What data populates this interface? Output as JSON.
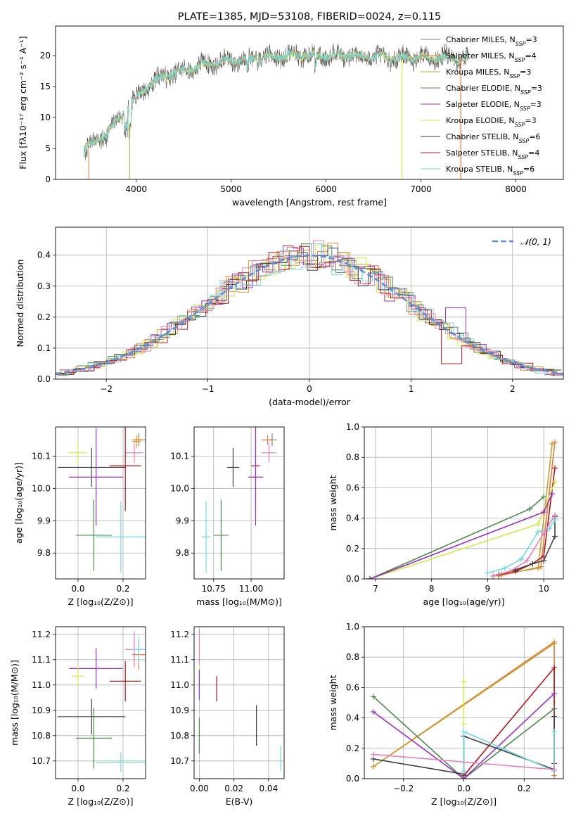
{
  "title": "PLATE=1385, MJD=53108, FIBERID=0024, z=0.115",
  "colors": {
    "chabrier_miles": "#808080",
    "salpeter_miles": "#e07b39",
    "kroupa_miles": "#c8a030",
    "chabrier_elodie": "#4c8a4c",
    "salpeter_elodie": "#9b30c0",
    "kroupa_elodie": "#d2e64a",
    "chabrier_stelib": "#404040",
    "salpeter_stelib": "#b01818",
    "kroupa_stelib": "#6fd8e0",
    "pink": "#e87fbf",
    "normal_curve": "#5b8fd9"
  },
  "chart_data": [
    {
      "id": "spectrum",
      "type": "line",
      "title": "PLATE=1385, MJD=53108, FIBERID=0024, z=0.115",
      "xlabel": "wavelength [Angstrom, rest frame]",
      "ylabel": "Flux [fλ10⁻¹⁷ erg cm⁻² s⁻¹ A⁻¹]",
      "xlim": [
        3150,
        8500
      ],
      "ylim": [
        0,
        24.8
      ],
      "xticks": [
        4000,
        5000,
        6000,
        7000,
        8000
      ],
      "yticks": [
        0,
        5,
        10,
        15,
        20
      ],
      "legend_position": "top-right",
      "x_range": [
        3450,
        7500
      ],
      "envelope": {
        "x": [
          3450,
          3550,
          3650,
          3750,
          3850,
          3950,
          4050,
          4150,
          4300,
          4500,
          4700,
          4900,
          5100,
          5300,
          5500,
          5700,
          5900,
          6100,
          6300,
          6500,
          6700,
          6900,
          7100,
          7300,
          7500
        ],
        "y": [
          5.0,
          5.7,
          7.0,
          8.5,
          10.5,
          12.3,
          14.0,
          15.6,
          16.7,
          17.6,
          18.5,
          19.0,
          19.4,
          19.6,
          19.9,
          20.1,
          20.0,
          20.2,
          20.0,
          19.9,
          19.6,
          19.7,
          19.8,
          19.6,
          19.5
        ]
      },
      "series": [
        {
          "name": "Chabrier MILES, N_SSP=3"
        },
        {
          "name": "Salpeter MILES, N_SSP=4"
        },
        {
          "name": "Kroupa MILES, N_SSP=3"
        },
        {
          "name": "Chabrier ELODIE, N_SSP=3"
        },
        {
          "name": "Salpeter ELODIE, N_SSP=3"
        },
        {
          "name": "Kroupa ELODIE, N_SSP=3"
        },
        {
          "name": "Chabrier STELIB, N_SSP=6"
        },
        {
          "name": "Salpeter STELIB, N_SSP=4"
        },
        {
          "name": "Kroupa STELIB, N_SSP=6"
        }
      ]
    },
    {
      "id": "residuals",
      "type": "line",
      "xlabel": "(data-model)/error",
      "ylabel": "Normed distribution",
      "xlim": [
        -2.5,
        2.5
      ],
      "ylim": [
        0,
        0.49
      ],
      "xticks": [
        -2,
        -1,
        0,
        1,
        2
      ],
      "yticks": [
        0.0,
        0.1,
        0.2,
        0.3,
        0.4
      ],
      "grid": true,
      "legend_position": "top-right",
      "normal_label": "𝒩(0, 1)",
      "bin_width": 0.1
    },
    {
      "id": "age_vs_Z",
      "type": "scatter",
      "xlabel": "Z [log₁₀(Z/Z⊙)]",
      "ylabel": "age  [log₁₀(age/yr)]",
      "xlim": [
        -0.1,
        0.3
      ],
      "ylim": [
        9.72,
        10.19
      ],
      "xticks": [
        0.0,
        0.2
      ],
      "yticks": [
        9.8,
        9.9,
        10.0,
        10.1
      ],
      "grid": true,
      "points": [
        {
          "c": "chabrier_miles",
          "x": 0.27,
          "y": 10.15,
          "xe": 0.02,
          "ye": 0.02
        },
        {
          "c": "salpeter_miles",
          "x": 0.27,
          "y": 10.15,
          "xe": 0.03,
          "ye": 0.015
        },
        {
          "c": "kroupa_miles",
          "x": 0.26,
          "y": 10.145,
          "xe": 0.02,
          "ye": 0.02
        },
        {
          "c": "pink",
          "x": 0.25,
          "y": 10.11,
          "xe": 0.04,
          "ye": 0.03
        },
        {
          "c": "kroupa_elodie",
          "x": 0.0,
          "y": 10.11,
          "xe": 0.04,
          "ye": 0.035
        },
        {
          "c": "chabrier_stelib",
          "x": 0.06,
          "y": 10.065,
          "xe": 0.15,
          "ye": 0.06
        },
        {
          "c": "salpeter_stelib",
          "x": 0.21,
          "y": 10.07,
          "xe": 0.07,
          "ye": 0.14
        },
        {
          "c": "salpeter_elodie",
          "x": 0.08,
          "y": 10.035,
          "xe": 0.12,
          "ye": 0.15
        },
        {
          "c": "chabrier_elodie",
          "x": 0.07,
          "y": 9.855,
          "xe": 0.08,
          "ye": 0.11
        },
        {
          "c": "kroupa_stelib",
          "x": 0.19,
          "y": 9.85,
          "xe": 0.11,
          "ye": 0.11
        }
      ]
    },
    {
      "id": "age_vs_mass",
      "type": "scatter",
      "xlabel": "mass [log₁₀(M/M⊙)]",
      "xlim": [
        10.62,
        11.22
      ],
      "ylim": [
        9.72,
        10.19
      ],
      "xticks": [
        10.75,
        11.0
      ],
      "xticklabels": [
        "10.75",
        "11.00"
      ],
      "yticks": [
        9.8,
        9.9,
        10.0,
        10.1
      ],
      "grid": true,
      "points": [
        {
          "c": "chabrier_miles",
          "x": 11.14,
          "y": 10.15,
          "xe": 0.03,
          "ye": 0.02
        },
        {
          "c": "salpeter_miles",
          "x": 11.11,
          "y": 10.15,
          "xe": 0.04,
          "ye": 0.015
        },
        {
          "c": "pink",
          "x": 11.12,
          "y": 10.11,
          "xe": 0.05,
          "ye": 0.03
        },
        {
          "c": "chabrier_stelib",
          "x": 10.88,
          "y": 10.065,
          "xe": 0.04,
          "ye": 0.06
        },
        {
          "c": "salpeter_stelib",
          "x": 11.03,
          "y": 10.07,
          "xe": 0.03,
          "ye": 0.14
        },
        {
          "c": "salpeter_elodie",
          "x": 11.03,
          "y": 10.035,
          "xe": 0.05,
          "ye": 0.15
        },
        {
          "c": "chabrier_elodie",
          "x": 10.8,
          "y": 9.855,
          "xe": 0.05,
          "ye": 0.11
        },
        {
          "c": "kroupa_stelib",
          "x": 10.7,
          "y": 9.85,
          "xe": 0.03,
          "ye": 0.11
        }
      ]
    },
    {
      "id": "weight_vs_age",
      "type": "line",
      "xlabel": "age  [log₁₀(age/yr)]",
      "ylabel": "mass weight",
      "xlim": [
        6.8,
        10.35
      ],
      "ylim": [
        0,
        1
      ],
      "xticks": [
        7,
        8,
        9,
        10
      ],
      "yticks": [
        0.0,
        0.2,
        0.4,
        0.6,
        0.8,
        1.0
      ],
      "grid": true,
      "series": [
        {
          "c": "salpeter_miles",
          "x": [
            9.2,
            9.95,
            10.2
          ],
          "y": [
            0.02,
            0.08,
            0.9
          ]
        },
        {
          "c": "kroupa_miles",
          "x": [
            9.25,
            9.9,
            10.15
          ],
          "y": [
            0.03,
            0.07,
            0.89
          ]
        },
        {
          "c": "salpeter_stelib",
          "x": [
            9.1,
            9.5,
            9.8,
            10.0,
            10.2
          ],
          "y": [
            0.02,
            0.05,
            0.1,
            0.15,
            0.73
          ]
        },
        {
          "c": "kroupa_elodie",
          "x": [
            6.9,
            9.9,
            10.2
          ],
          "y": [
            0.0,
            0.36,
            0.64
          ]
        },
        {
          "c": "chabrier_elodie",
          "x": [
            6.9,
            9.75,
            10.0
          ],
          "y": [
            0.0,
            0.46,
            0.54
          ]
        },
        {
          "c": "salpeter_elodie",
          "x": [
            6.9,
            10.0,
            10.15
          ],
          "y": [
            0.0,
            0.44,
            0.56
          ]
        },
        {
          "c": "chabrier_stelib",
          "x": [
            9.2,
            9.5,
            9.8,
            10.0,
            10.2,
            10.2
          ],
          "y": [
            0.03,
            0.06,
            0.1,
            0.12,
            0.28,
            0.41
          ]
        },
        {
          "c": "kroupa_stelib",
          "x": [
            9.0,
            9.3,
            9.6,
            9.9,
            10.1,
            10.2
          ],
          "y": [
            0.04,
            0.07,
            0.13,
            0.31,
            0.33,
            0.39
          ]
        },
        {
          "c": "pink",
          "x": [
            9.1,
            9.4,
            9.7,
            10.0,
            10.2
          ],
          "y": [
            0.02,
            0.05,
            0.12,
            0.3,
            0.42
          ]
        }
      ]
    },
    {
      "id": "mass_vs_Z",
      "type": "scatter",
      "xlabel": "Z [log₁₀(Z/Z⊙)]",
      "ylabel": "mass [log₁₀(M/M⊙)]",
      "xlim": [
        -0.1,
        0.3
      ],
      "ylim": [
        10.63,
        11.23
      ],
      "xticks": [
        0.0,
        0.2
      ],
      "yticks": [
        10.7,
        10.8,
        10.9,
        11.0,
        11.1,
        11.2
      ],
      "grid": true,
      "points": [
        {
          "c": "pink",
          "x": 0.25,
          "y": 11.14,
          "xe": 0.04,
          "ye": 0.07
        },
        {
          "c": "salpeter_miles",
          "x": 0.27,
          "y": 11.12,
          "xe": 0.03,
          "ye": 0.06
        },
        {
          "c": "kroupa_stelib",
          "x": 0.27,
          "y": 11.14,
          "xe": 0.03,
          "ye": 0.05
        },
        {
          "c": "salpeter_elodie",
          "x": 0.08,
          "y": 11.065,
          "xe": 0.12,
          "ye": 0.08
        },
        {
          "c": "kroupa_elodie",
          "x": 0.0,
          "y": 11.035,
          "xe": 0.03,
          "ye": 0.04
        },
        {
          "c": "salpeter_stelib",
          "x": 0.21,
          "y": 11.015,
          "xe": 0.07,
          "ye": 0.08
        },
        {
          "c": "chabrier_stelib",
          "x": 0.06,
          "y": 10.875,
          "xe": 0.15,
          "ye": 0.07
        },
        {
          "c": "chabrier_elodie",
          "x": 0.07,
          "y": 10.79,
          "xe": 0.08,
          "ye": 0.12
        },
        {
          "c": "kroupa_stelib",
          "x": 0.19,
          "y": 10.695,
          "xe": 0.11,
          "ye": 0.04
        }
      ]
    },
    {
      "id": "mass_vs_ebv",
      "type": "scatter",
      "xlabel": "E(B-V)",
      "xlim": [
        -0.003,
        0.049
      ],
      "ylim": [
        10.63,
        11.23
      ],
      "xticks": [
        0.0,
        0.02,
        0.04
      ],
      "xticklabels": [
        "0.00",
        "0.02",
        "0.04"
      ],
      "yticks": [
        10.7,
        10.8,
        10.9,
        11.0,
        11.1,
        11.2
      ],
      "grid": true,
      "points": [
        {
          "c": "pink",
          "x": 0.0,
          "y": 11.15,
          "xe": 0,
          "ye": 0.07
        },
        {
          "c": "kroupa_elodie",
          "x": 0.0,
          "y": 11.035,
          "xe": 0,
          "ye": 0.04
        },
        {
          "c": "salpeter_elodie",
          "x": 0.0,
          "y": 11.0,
          "xe": 0,
          "ye": 0.06
        },
        {
          "c": "chabrier_elodie",
          "x": 0.0,
          "y": 10.8,
          "xe": 0,
          "ye": 0.07
        },
        {
          "c": "salpeter_stelib",
          "x": 0.01,
          "y": 10.985,
          "xe": 0,
          "ye": 0.05
        },
        {
          "c": "chabrier_stelib",
          "x": 0.033,
          "y": 10.84,
          "xe": 0,
          "ye": 0.08
        },
        {
          "c": "kroupa_stelib",
          "x": 0.047,
          "y": 10.71,
          "xe": 0,
          "ye": 0.05
        }
      ]
    },
    {
      "id": "weight_vs_Z",
      "type": "line",
      "xlabel": "Z [log₁₀(Z/Z⊙)]",
      "ylabel": "mass weight",
      "xlim": [
        -0.33,
        0.33
      ],
      "ylim": [
        0,
        1
      ],
      "xticks": [
        -0.2,
        0.0,
        0.2
      ],
      "xticklabels": [
        "−0.2",
        "0.0",
        "0.2"
      ],
      "yticks": [
        0.0,
        0.2,
        0.4,
        0.6,
        0.8,
        1.0
      ],
      "grid": true,
      "series": [
        {
          "c": "salpeter_miles",
          "x": [
            -0.3,
            0.3,
            0.3
          ],
          "y": [
            0.08,
            0.9,
            0.02
          ]
        },
        {
          "c": "kroupa_miles",
          "x": [
            -0.3,
            0.3
          ],
          "y": [
            0.08,
            0.89
          ]
        },
        {
          "c": "salpeter_stelib",
          "x": [
            0.0,
            0.3,
            0.3
          ],
          "y": [
            0.02,
            0.73,
            0.1
          ]
        },
        {
          "c": "chabrier_elodie",
          "x": [
            -0.3,
            0.0,
            0.3
          ],
          "y": [
            0.54,
            0.0,
            0.46
          ]
        },
        {
          "c": "salpeter_elodie",
          "x": [
            -0.3,
            0.0,
            0.3
          ],
          "y": [
            0.44,
            0.0,
            0.56
          ]
        },
        {
          "c": "kroupa_elodie",
          "x": [
            0.0,
            0.0
          ],
          "y": [
            0.36,
            0.64
          ]
        },
        {
          "c": "chabrier_stelib",
          "x": [
            -0.3,
            0.0,
            0.0,
            0.3,
            0.3
          ],
          "y": [
            0.13,
            0.03,
            0.28,
            0.06,
            0.41
          ]
        },
        {
          "c": "kroupa_stelib",
          "x": [
            0.0,
            0.0,
            0.3,
            0.3
          ],
          "y": [
            0.05,
            0.31,
            0.05,
            0.31
          ]
        },
        {
          "c": "pink",
          "x": [
            -0.3,
            0.3
          ],
          "y": [
            0.16,
            0.06
          ]
        }
      ]
    }
  ]
}
